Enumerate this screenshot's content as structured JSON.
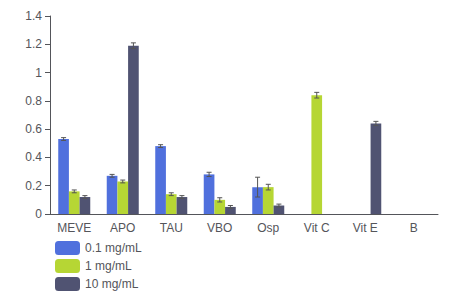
{
  "chart_data": {
    "type": "bar",
    "categories": [
      "MEVE",
      "APO",
      "TAU",
      "VBO",
      "Osp",
      "Vit C",
      "Vit E",
      "B"
    ],
    "series": [
      {
        "name": "0.1 mg/mL",
        "values": [
          0.53,
          0.27,
          0.48,
          0.28,
          0.19,
          0.0,
          0.0,
          0.0
        ],
        "errors": [
          0.01,
          0.01,
          0.01,
          0.015,
          0.07,
          0.0,
          0.0,
          0.0
        ]
      },
      {
        "name": "1 mg/mL",
        "values": [
          0.16,
          0.23,
          0.14,
          0.1,
          0.19,
          0.84,
          0.0,
          0.0
        ],
        "errors": [
          0.01,
          0.01,
          0.01,
          0.015,
          0.02,
          0.02,
          0.0,
          0.0
        ]
      },
      {
        "name": "10 mg/mL",
        "values": [
          0.12,
          1.19,
          0.12,
          0.05,
          0.06,
          0.0,
          0.64,
          0.0
        ],
        "errors": [
          0.01,
          0.02,
          0.01,
          0.01,
          0.01,
          0.0,
          0.015,
          0.0
        ]
      }
    ],
    "ylim": [
      0,
      1.4
    ],
    "yticks": [
      0,
      0.2,
      0.4,
      0.6,
      0.8,
      1.0,
      1.2,
      1.4
    ],
    "grid": false,
    "legend": "lower left"
  }
}
